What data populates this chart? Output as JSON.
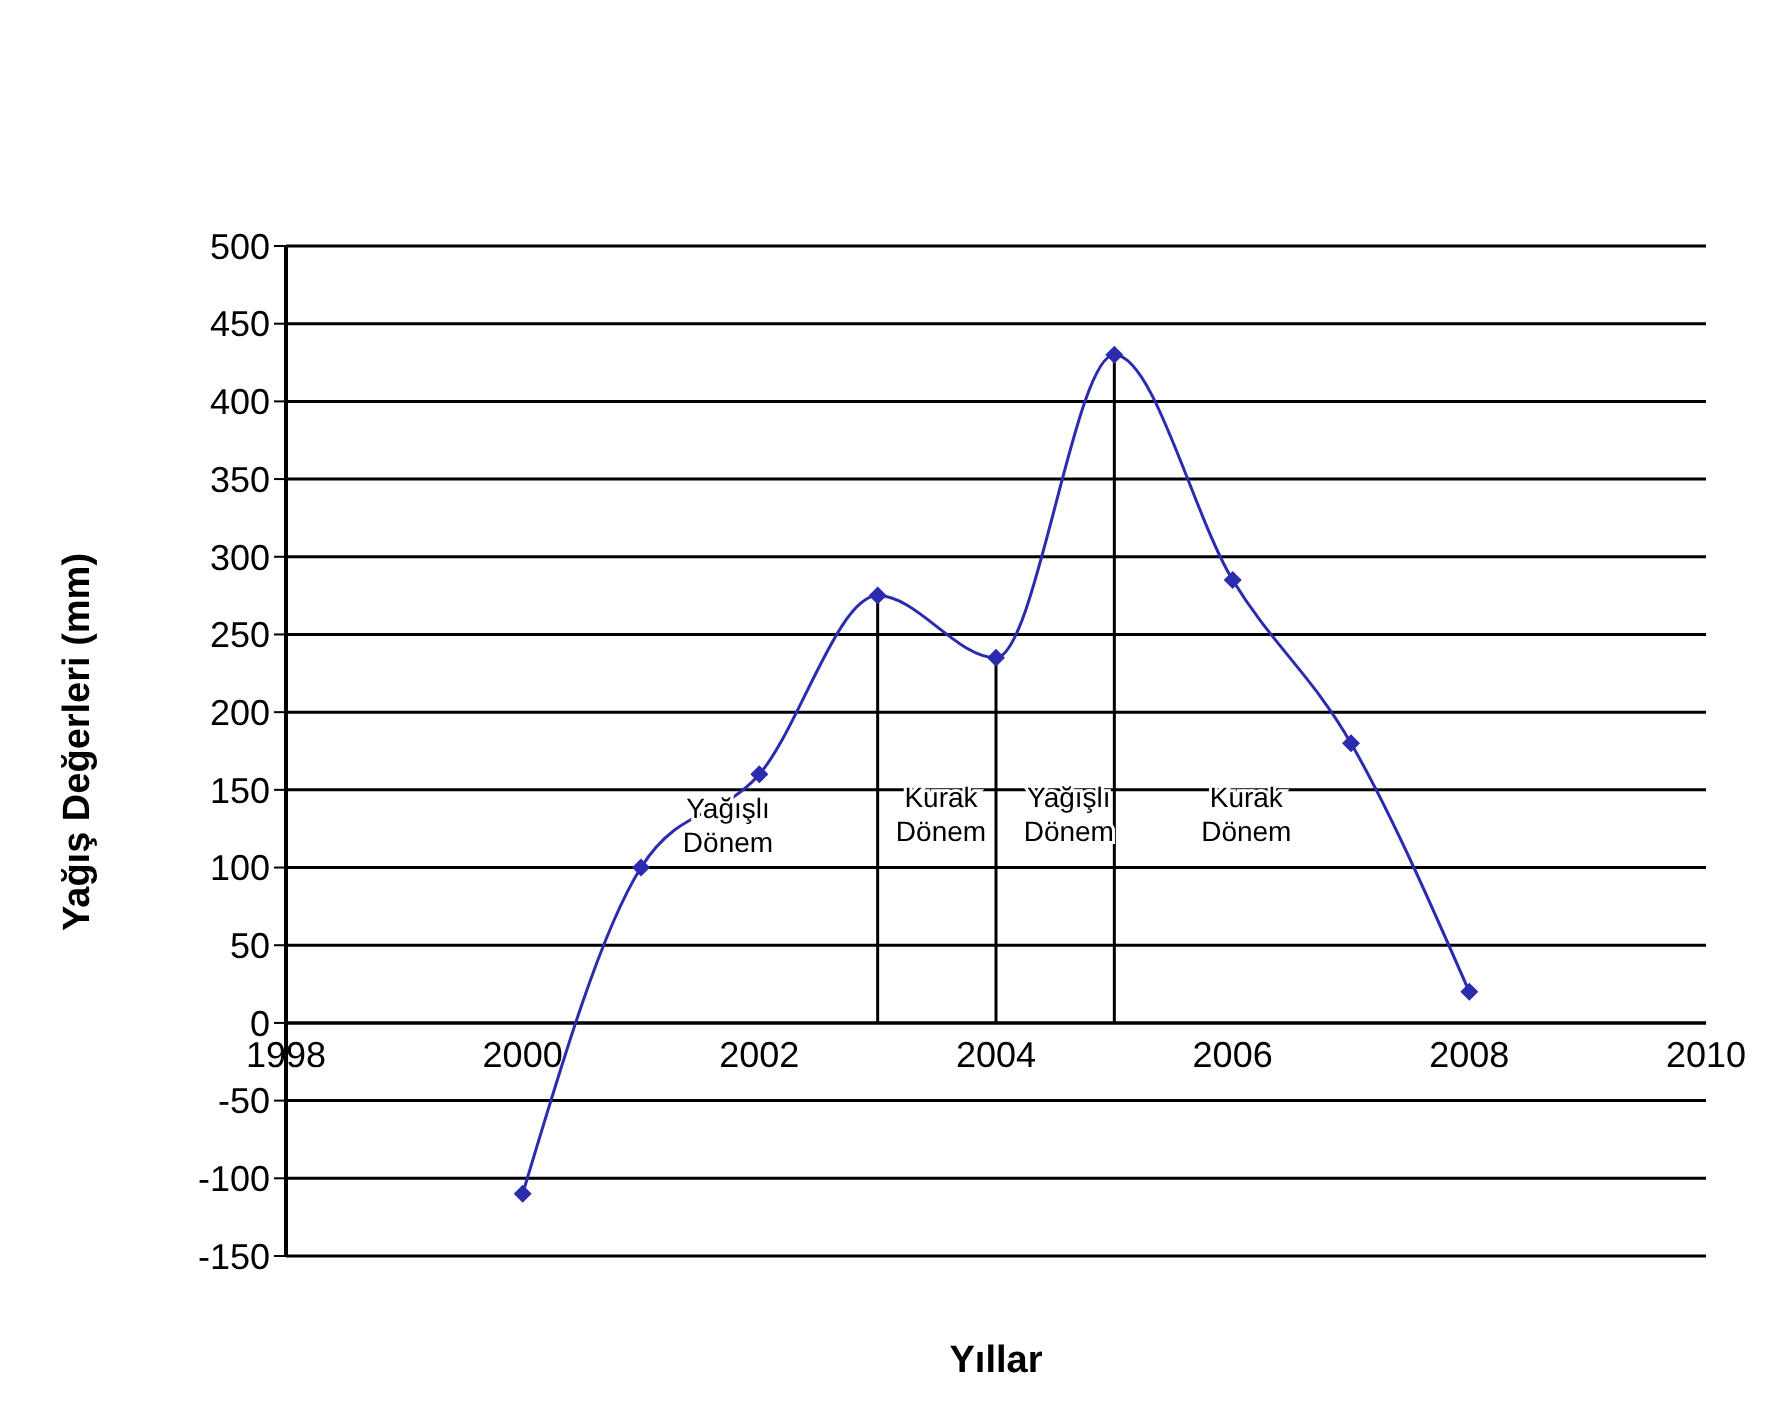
{
  "chart_data": {
    "type": "line",
    "xlabel": "Yıllar",
    "ylabel": "Yağış Değerleri (mm)",
    "x": [
      2000,
      2001,
      2002,
      2003,
      2004,
      2005,
      2006,
      2007,
      2008
    ],
    "series": [
      {
        "color": "#2b2bb0",
        "values": [
          -110,
          100,
          160,
          275,
          235,
          430,
          285,
          180,
          20
        ]
      }
    ],
    "xlim": [
      1998,
      2010
    ],
    "xticks": [
      1998,
      2000,
      2002,
      2004,
      2006,
      2008,
      2010
    ],
    "ylim": [
      -150,
      500
    ],
    "yticks": [
      -150,
      -100,
      -50,
      0,
      50,
      100,
      150,
      200,
      250,
      300,
      350,
      400,
      450,
      500
    ],
    "grid": "y",
    "legend": false,
    "marker": "diamond",
    "line_style": "solid",
    "ref_lines": [
      {
        "axis": "x",
        "value": 2003,
        "color": "#000000"
      },
      {
        "axis": "x",
        "value": 2004,
        "color": "#000000"
      },
      {
        "axis": "x",
        "value": 2005,
        "color": "#000000"
      }
    ],
    "annotations": [
      "Yağışlı Dönem",
      "Kurak Dönem",
      "Yağışlı Dönem",
      "Kurak Dönem"
    ]
  }
}
